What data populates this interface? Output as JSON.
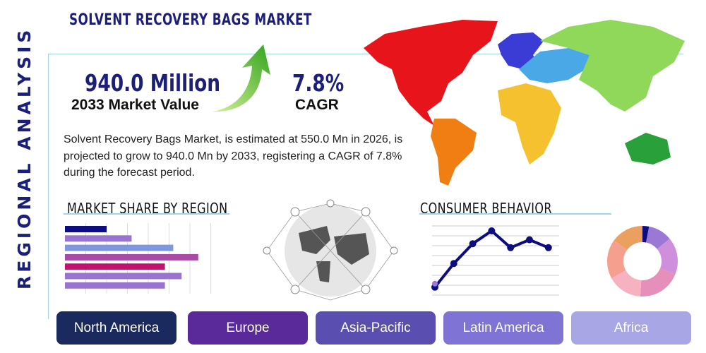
{
  "title": "SOLVENT RECOVERY BAGS MARKET",
  "side_label": "REGIONAL ANALYSIS",
  "kpi": {
    "value": "940.0 Million",
    "value_label": "2033 Market Value",
    "cagr": "7.8%",
    "cagr_label": "CAGR"
  },
  "description": "Solvent Recovery Bags Market, is estimated at 550.0 Mn in 2026, is projected to grow to 940.0 Mn by 2033, registering a CAGR of 7.8% during the forecast period.",
  "sections": {
    "market_share": "MARKET SHARE BY REGION",
    "consumer": "CONSUMER BEHAVIOR"
  },
  "regions": [
    {
      "label": "North America",
      "color": "#1a2a5e"
    },
    {
      "label": "Europe",
      "color": "#5b2a9a"
    },
    {
      "label": "Asia-Pacific",
      "color": "#5a4fb0"
    },
    {
      "label": "Latin America",
      "color": "#7f74d6"
    },
    {
      "label": "Africa",
      "color": "#a9a6e6"
    }
  ],
  "chart_data": [
    {
      "type": "bar",
      "orientation": "horizontal",
      "values": [
        2,
        3.2,
        5.2,
        6.4,
        4.8,
        5.6,
        4.8
      ],
      "colors": [
        "#0d0d80",
        "#9a72d0",
        "#7f97de",
        "#aa4aa6",
        "#c4106e",
        "#9a72d0",
        "#9a72d0"
      ],
      "xlim": [
        0,
        8
      ],
      "grid": true
    },
    {
      "type": "line",
      "values": [
        0.8,
        3.2,
        5.2,
        6.5,
        4.8,
        5.6,
        4.8
      ],
      "ylim": [
        0,
        7
      ],
      "color": "#0d0d80",
      "grid": true
    },
    {
      "type": "pie",
      "donut": true,
      "values": [
        3,
        11,
        17,
        20,
        16,
        18,
        15
      ],
      "colors": [
        "#0d0d80",
        "#9a78d6",
        "#cf8fdc",
        "#e68fbb",
        "#f7b2c2",
        "#f5a08e",
        "#eba060"
      ]
    }
  ],
  "map_colors": {
    "north_america": "#e8141c",
    "south_america": "#f07e12",
    "europe": "#3b3bd6",
    "africa": "#f5c12e",
    "asia": "#8fd85a",
    "middle_east": "#4aa8e6",
    "oceania": "#2aa03a"
  }
}
